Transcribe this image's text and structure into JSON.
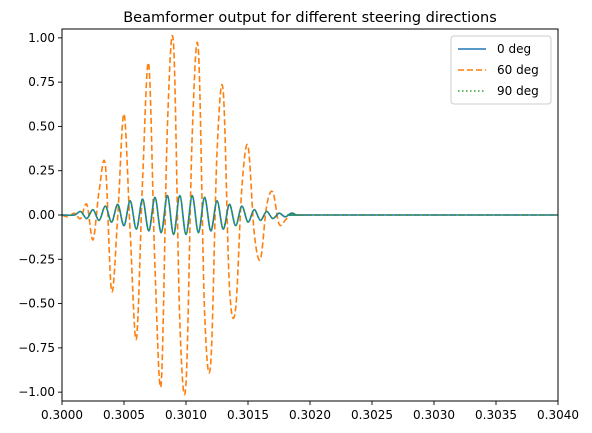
{
  "chart_data": {
    "type": "line",
    "title": "Beamformer output for different steering directions",
    "xlabel": "",
    "ylabel": "",
    "xlim": [
      0.3,
      0.304
    ],
    "ylim": [
      -1.05,
      1.05
    ],
    "x_ticks": [
      "0.3000",
      "0.3005",
      "0.3010",
      "0.3015",
      "0.3020",
      "0.3025",
      "0.3030",
      "0.3035",
      "0.3040"
    ],
    "y_ticks": [
      "1.00",
      "0.75",
      "0.50",
      "0.25",
      "0.00",
      "−0.25",
      "−0.50",
      "−0.75",
      "−1.00"
    ],
    "grid": false,
    "legend": {
      "placement": "top-right"
    },
    "series": [
      {
        "name": "0 deg",
        "style": "solid",
        "color": "#1f77b4",
        "x": [
          0.3,
          0.3001,
          0.30015,
          0.3002,
          0.30025,
          0.3003,
          0.30035,
          0.3004,
          0.30045,
          0.3005,
          0.30055,
          0.3006,
          0.30065,
          0.3007,
          0.30075,
          0.3008,
          0.30085,
          0.3009,
          0.30095,
          0.301,
          0.30105,
          0.3011,
          0.30115,
          0.3012,
          0.30125,
          0.3013,
          0.30135,
          0.3014,
          0.30145,
          0.3015,
          0.30155,
          0.3016,
          0.30165,
          0.3017,
          0.30175,
          0.3018,
          0.30185,
          0.3019,
          0.302,
          0.304
        ],
        "y": [
          0.0,
          0.0,
          0.02,
          -0.02,
          0.03,
          -0.03,
          0.05,
          -0.04,
          0.06,
          -0.06,
          0.08,
          -0.08,
          0.09,
          -0.09,
          0.1,
          -0.1,
          0.11,
          -0.11,
          0.11,
          -0.11,
          0.11,
          -0.1,
          0.1,
          -0.09,
          0.08,
          -0.08,
          0.06,
          -0.06,
          0.05,
          -0.04,
          0.03,
          -0.03,
          0.02,
          -0.02,
          0.01,
          -0.01,
          0.01,
          0.0,
          0.0,
          0.0
        ]
      },
      {
        "name": "60 deg",
        "style": "dashed",
        "color": "#ff7f0e",
        "x": [
          0.3,
          0.30005,
          0.3001,
          0.30015,
          0.3002,
          0.30025,
          0.3003,
          0.30035,
          0.3004,
          0.30045,
          0.3005,
          0.30055,
          0.3006,
          0.30065,
          0.3007,
          0.30075,
          0.3008,
          0.30085,
          0.3009,
          0.30095,
          0.301,
          0.30105,
          0.3011,
          0.30115,
          0.3012,
          0.30125,
          0.3013,
          0.30135,
          0.3014,
          0.30145,
          0.3015,
          0.30155,
          0.3016,
          0.30165,
          0.3017,
          0.30175,
          0.3018,
          0.30185,
          0.3019,
          0.30195,
          0.302,
          0.30205,
          0.304
        ],
        "y": [
          0.0,
          -0.01,
          0.01,
          -0.02,
          0.06,
          -0.14,
          0.14,
          0.28,
          -0.43,
          0.0,
          0.57,
          -0.1,
          -0.7,
          0.2,
          0.85,
          -0.3,
          -0.95,
          0.5,
          0.96,
          -0.6,
          -0.95,
          0.45,
          0.93,
          -0.55,
          -0.83,
          0.35,
          0.7,
          -0.4,
          -0.53,
          0.15,
          0.39,
          -0.1,
          -0.25,
          0.05,
          0.13,
          -0.05,
          -0.03,
          0.01,
          0.0,
          0.0,
          0.0,
          0.0,
          0.0
        ]
      },
      {
        "name": "90 deg",
        "style": "dotted",
        "color": "#2ca02c",
        "x": [
          0.3,
          0.3001,
          0.30015,
          0.3002,
          0.30025,
          0.3003,
          0.30035,
          0.3004,
          0.30045,
          0.3005,
          0.30055,
          0.3006,
          0.30065,
          0.3007,
          0.30075,
          0.3008,
          0.30085,
          0.3009,
          0.30095,
          0.301,
          0.30105,
          0.3011,
          0.30115,
          0.3012,
          0.30125,
          0.3013,
          0.30135,
          0.3014,
          0.30145,
          0.3015,
          0.30155,
          0.3016,
          0.30165,
          0.3017,
          0.30175,
          0.3018,
          0.30185,
          0.3019,
          0.302,
          0.304
        ],
        "y": [
          0.0,
          0.0,
          0.02,
          -0.02,
          0.03,
          -0.03,
          0.05,
          -0.04,
          0.06,
          -0.06,
          0.08,
          -0.08,
          0.09,
          -0.09,
          0.1,
          -0.1,
          0.11,
          -0.11,
          0.11,
          -0.11,
          0.11,
          -0.1,
          0.1,
          -0.09,
          0.08,
          -0.08,
          0.06,
          -0.06,
          0.05,
          -0.04,
          0.03,
          -0.03,
          0.02,
          -0.02,
          0.01,
          -0.01,
          0.01,
          0.0,
          0.0,
          0.0
        ]
      }
    ]
  }
}
